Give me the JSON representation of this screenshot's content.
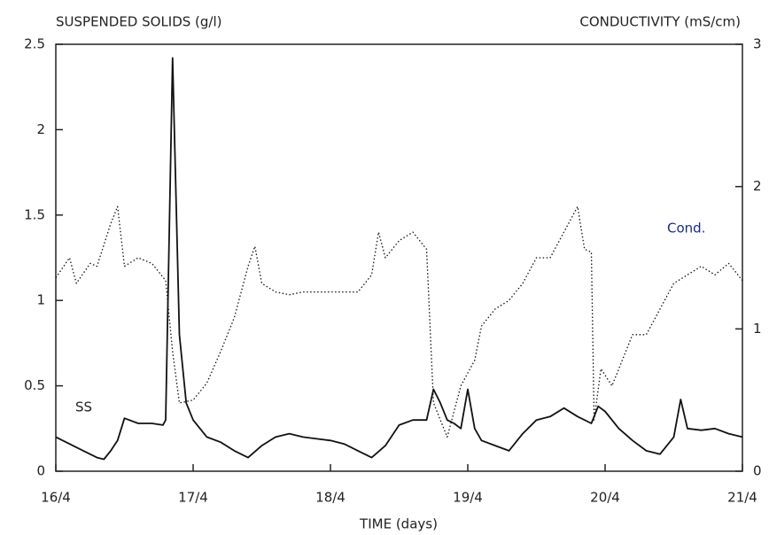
{
  "chart_data": {
    "type": "line",
    "y_label": "SUSPENDED SOLIDS (g/l)",
    "y2_label": "CONDUCTIVITY (mS/cm)",
    "x_label": "TIME (days)",
    "xlim": [
      16,
      21
    ],
    "xticks": [
      {
        "value": 16,
        "label": "16/4"
      },
      {
        "value": 17,
        "label": "17/4"
      },
      {
        "value": 18,
        "label": "18/4"
      },
      {
        "value": 19,
        "label": "19/4"
      },
      {
        "value": 20,
        "label": "20/4"
      },
      {
        "value": 21,
        "label": "21/4"
      }
    ],
    "ylim": [
      0,
      2.5
    ],
    "yticks": [
      0,
      0.5,
      1,
      1.5,
      2,
      2.5
    ],
    "y2lim": [
      0,
      3
    ],
    "y2ticks": [
      0,
      1,
      2,
      3
    ],
    "series": [
      {
        "name": "SS",
        "color": "#111111",
        "style": "solid",
        "x": [
          16.0,
          16.1,
          16.2,
          16.3,
          16.35,
          16.4,
          16.45,
          16.5,
          16.6,
          16.7,
          16.78,
          16.8,
          16.85,
          16.9,
          16.95,
          17.0,
          17.1,
          17.2,
          17.3,
          17.4,
          17.5,
          17.6,
          17.7,
          17.8,
          17.9,
          18.0,
          18.1,
          18.2,
          18.3,
          18.4,
          18.5,
          18.6,
          18.7,
          18.75,
          18.8,
          18.85,
          18.9,
          18.95,
          19.0,
          19.05,
          19.1,
          19.2,
          19.3,
          19.4,
          19.5,
          19.6,
          19.7,
          19.8,
          19.9,
          19.95,
          20.0,
          20.1,
          20.2,
          20.3,
          20.4,
          20.5,
          20.55,
          20.6,
          20.7,
          20.8,
          20.9,
          21.0
        ],
        "values": [
          0.2,
          0.16,
          0.12,
          0.08,
          0.07,
          0.12,
          0.18,
          0.31,
          0.28,
          0.28,
          0.27,
          0.3,
          2.42,
          0.8,
          0.4,
          0.3,
          0.2,
          0.17,
          0.12,
          0.08,
          0.15,
          0.2,
          0.22,
          0.2,
          0.19,
          0.18,
          0.16,
          0.12,
          0.08,
          0.15,
          0.27,
          0.3,
          0.3,
          0.48,
          0.4,
          0.3,
          0.28,
          0.25,
          0.48,
          0.25,
          0.18,
          0.15,
          0.12,
          0.22,
          0.3,
          0.32,
          0.37,
          0.32,
          0.28,
          0.38,
          0.35,
          0.25,
          0.18,
          0.12,
          0.1,
          0.2,
          0.42,
          0.25,
          0.24,
          0.25,
          0.22,
          0.2
        ]
      },
      {
        "name": "Cond.",
        "color": "#111111",
        "label_color": "#1a2a8c",
        "style": "dotted",
        "axis": "y2",
        "x": [
          16.0,
          16.1,
          16.15,
          16.25,
          16.3,
          16.4,
          16.45,
          16.5,
          16.6,
          16.7,
          16.8,
          16.85,
          16.9,
          17.0,
          17.1,
          17.2,
          17.3,
          17.4,
          17.45,
          17.5,
          17.6,
          17.7,
          17.8,
          17.9,
          18.0,
          18.1,
          18.2,
          18.3,
          18.35,
          18.4,
          18.5,
          18.6,
          18.7,
          18.75,
          18.85,
          18.95,
          19.05,
          19.1,
          19.2,
          19.3,
          19.4,
          19.5,
          19.6,
          19.7,
          19.8,
          19.85,
          19.9,
          19.92,
          19.97,
          20.05,
          20.1,
          20.2,
          20.3,
          20.4,
          20.5,
          20.6,
          20.7,
          20.8,
          20.9,
          21.0
        ],
        "values": [
          1.36,
          1.5,
          1.32,
          1.46,
          1.44,
          1.74,
          1.86,
          1.44,
          1.5,
          1.46,
          1.34,
          0.84,
          0.48,
          0.5,
          0.62,
          0.84,
          1.08,
          1.44,
          1.58,
          1.32,
          1.26,
          1.24,
          1.26,
          1.26,
          1.26,
          1.26,
          1.26,
          1.38,
          1.68,
          1.5,
          1.62,
          1.68,
          1.56,
          0.48,
          0.24,
          0.6,
          0.78,
          1.02,
          1.14,
          1.2,
          1.32,
          1.5,
          1.5,
          1.68,
          1.86,
          1.56,
          1.54,
          0.36,
          0.72,
          0.6,
          0.72,
          0.96,
          0.96,
          1.14,
          1.32,
          1.38,
          1.44,
          1.38,
          1.46,
          1.34
        ]
      }
    ]
  }
}
